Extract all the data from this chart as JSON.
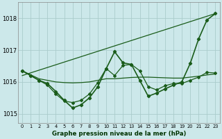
{
  "title": "Graphe pression niveau de la mer (hPa)",
  "bg_color": "#cce8ea",
  "grid_color": "#aacccc",
  "line_color": "#1a5c1a",
  "xlim": [
    -0.5,
    23.5
  ],
  "ylim": [
    1014.7,
    1018.5
  ],
  "yticks": [
    1015,
    1016,
    1017,
    1018
  ],
  "xticks": [
    0,
    1,
    2,
    3,
    4,
    5,
    6,
    7,
    8,
    9,
    10,
    11,
    12,
    13,
    14,
    15,
    16,
    17,
    18,
    19,
    20,
    21,
    22,
    23
  ],
  "series_flat": {
    "x": [
      0,
      2,
      3,
      4,
      5,
      6,
      7,
      8,
      9,
      10,
      11,
      12,
      13,
      14,
      15,
      16,
      17,
      18,
      19,
      20,
      21,
      22,
      23
    ],
    "y": [
      1016.35,
      1016.1,
      1016.05,
      1016.0,
      1015.98,
      1015.97,
      1015.98,
      1016.0,
      1016.05,
      1016.1,
      1016.1,
      1016.12,
      1016.14,
      1016.15,
      1016.15,
      1016.14,
      1016.13,
      1016.12,
      1016.12,
      1016.15,
      1016.18,
      1016.22,
      1016.25
    ],
    "linewidth": 0.9
  },
  "series_trend": {
    "x": [
      0,
      23
    ],
    "y": [
      1016.2,
      1018.15
    ],
    "linewidth": 0.9
  },
  "series_wavy": {
    "x": [
      0,
      1,
      2,
      3,
      4,
      5,
      6,
      7,
      8,
      9,
      10,
      11,
      12,
      13,
      14,
      15,
      16,
      17,
      18,
      19,
      20,
      21,
      22,
      23
    ],
    "y": [
      1016.35,
      1016.2,
      1016.05,
      1015.9,
      1015.62,
      1015.4,
      1015.35,
      1015.42,
      1015.62,
      1015.98,
      1016.42,
      1016.2,
      1016.52,
      1016.55,
      1016.35,
      1015.85,
      1015.75,
      1015.88,
      1015.95,
      1015.95,
      1016.05,
      1016.15,
      1016.3,
      1016.28
    ],
    "marker": "D",
    "markersize": 2.0,
    "linewidth": 0.9
  },
  "series_main": {
    "x": [
      0,
      1,
      2,
      3,
      4,
      5,
      6,
      7,
      8,
      9,
      10,
      11,
      12,
      13,
      14,
      15,
      16,
      17,
      18,
      19,
      20,
      21,
      22,
      23
    ],
    "y": [
      1016.35,
      1016.2,
      1016.05,
      1015.95,
      1015.7,
      1015.42,
      1015.18,
      1015.28,
      1015.5,
      1015.85,
      1016.42,
      1016.95,
      1016.6,
      1016.55,
      1016.05,
      1015.55,
      1015.65,
      1015.78,
      1015.9,
      1016.0,
      1016.58,
      1017.35,
      1017.95,
      1018.15
    ],
    "marker": "D",
    "markersize": 2.2,
    "linewidth": 1.2
  }
}
